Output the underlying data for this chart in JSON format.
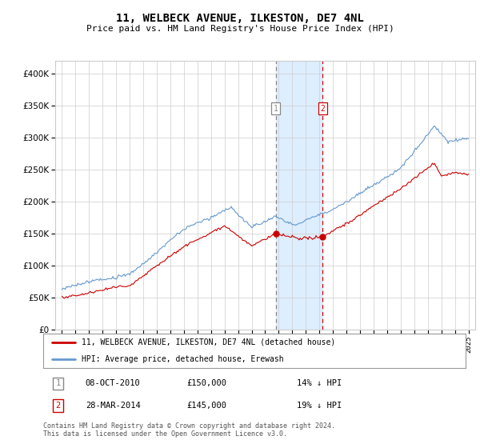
{
  "title": "11, WELBECK AVENUE, ILKESTON, DE7 4NL",
  "subtitle": "Price paid vs. HM Land Registry's House Price Index (HPI)",
  "legend_entry1": "11, WELBECK AVENUE, ILKESTON, DE7 4NL (detached house)",
  "legend_entry2": "HPI: Average price, detached house, Erewash",
  "transaction1_date": "08-OCT-2010",
  "transaction1_price": "£150,000",
  "transaction1_hpi": "14% ↓ HPI",
  "transaction2_date": "28-MAR-2014",
  "transaction2_price": "£145,000",
  "transaction2_hpi": "19% ↓ HPI",
  "footer": "Contains HM Land Registry data © Crown copyright and database right 2024.\nThis data is licensed under the Open Government Licence v3.0.",
  "hpi_color": "#6699cc",
  "price_color": "#cc0000",
  "highlight_color": "#ddeeff",
  "vline1_color": "#888888",
  "vline2_color": "#cc0000",
  "grid_color": "#cccccc",
  "background_color": "#ffffff",
  "transaction1_x": 2010.77,
  "transaction2_x": 2014.24,
  "ylim_min": 0,
  "ylim_max": 420000,
  "xlim_min": 1994.5,
  "xlim_max": 2025.5
}
